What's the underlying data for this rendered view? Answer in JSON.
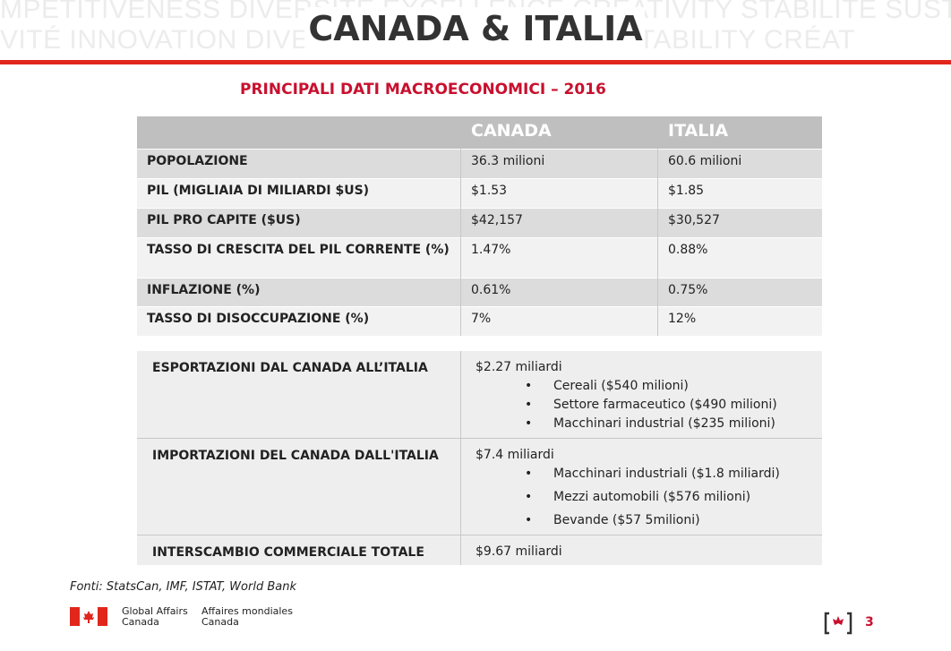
{
  "header": {
    "watermark": [
      "MPETITIVENESS DIVERSITÉ EXCELLENCE CREATIVITY STABILITÉ SUSTAINA",
      "VITÉ INNOVATION DIVERSITY PERFORMANCE STABILITY CRÉAT"
    ],
    "title": "CANADA & ITALIA"
  },
  "subtitle": "PRINCIPALI DATI MACROECONOMICI –  2016",
  "table": {
    "columns": [
      "CANADA",
      "ITALIA"
    ],
    "rows": [
      [
        "POPOLAZIONE",
        "36.3 milioni",
        "60.6 milioni"
      ],
      [
        "PIL (MIGLIAIA DI MILIARDI $US)",
        "$1.53",
        "$1.85"
      ],
      [
        "PIL PRO CAPITE ($US)",
        "$42,157",
        "$30,527"
      ],
      [
        "TASSO DI CRESCITA DEL PIL CORRENTE (%)",
        "1.47%",
        "0.88%"
      ],
      [
        "INFLAZIONE (%)",
        "0.61%",
        "0.75%"
      ],
      [
        "TASSO DI DISOCCUPAZIONE (%)",
        "7%",
        "12%"
      ]
    ]
  },
  "trade": [
    {
      "label": "ESPORTAZIONI DAL CANADA ALL’ITALIA",
      "total": "$2.27 miliardi",
      "items": [
        "Cereali ($540 milioni)",
        "Settore farmaceutico ($490 milioni)",
        "Macchinari industrial ($235 milioni)"
      ]
    },
    {
      "label": "IMPORTAZIONI DEL CANADA DALL'ITALIA",
      "total": "$7.4 miliardi",
      "items": [
        "Macchinari industriali ($1.8 miliardi)",
        "Mezzi automobili ($576 milioni)",
        "Bevande ($57 5milioni)"
      ]
    },
    {
      "label": "INTERSCAMBIO COMMERCIALE TOTALE",
      "total": "$9.67 miliardi"
    }
  ],
  "source": "Fonti: StatsCan, IMF, ISTAT, World Bank",
  "footer": {
    "logo_en": [
      "Global Affairs",
      "Canada"
    ],
    "logo_fr": [
      "Affaires mondiales",
      "Canada"
    ],
    "page": "3"
  }
}
